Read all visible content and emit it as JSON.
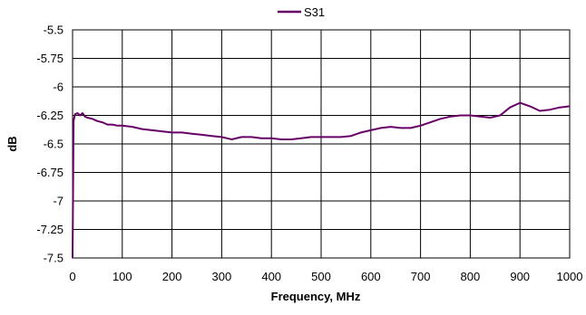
{
  "chart_data": {
    "type": "line",
    "title": "",
    "xlabel": "Frequency, MHz",
    "ylabel": "dB",
    "xlim": [
      0,
      1000
    ],
    "ylim": [
      -7.5,
      -5.5
    ],
    "x_ticks": [
      0,
      100,
      200,
      300,
      400,
      500,
      600,
      700,
      800,
      900,
      1000
    ],
    "y_ticks": [
      -5.5,
      -5.75,
      -6,
      -6.25,
      -6.5,
      -6.75,
      -7,
      -7.25,
      -7.5
    ],
    "x_tick_labels": [
      "0",
      "100",
      "200",
      "300",
      "400",
      "500",
      "600",
      "700",
      "800",
      "900",
      "1000"
    ],
    "y_tick_labels": [
      "-5.5",
      "-5.75",
      "-6",
      "-6.25",
      "-6.5",
      "-6.75",
      "-7",
      "-7.25",
      "-7.5"
    ],
    "grid": true,
    "legend_position": "top-center",
    "series": [
      {
        "name": "S31",
        "color": "#660066",
        "x": [
          0,
          2,
          5,
          10,
          15,
          20,
          25,
          30,
          40,
          50,
          60,
          70,
          80,
          90,
          100,
          120,
          140,
          160,
          180,
          200,
          220,
          240,
          260,
          280,
          300,
          320,
          340,
          360,
          380,
          400,
          420,
          440,
          460,
          480,
          500,
          520,
          540,
          560,
          580,
          600,
          620,
          640,
          660,
          680,
          700,
          720,
          740,
          760,
          780,
          800,
          820,
          840,
          860,
          880,
          900,
          920,
          940,
          960,
          980,
          1000
        ],
        "y": [
          -7.5,
          -6.3,
          -6.24,
          -6.23,
          -6.25,
          -6.23,
          -6.26,
          -6.27,
          -6.28,
          -6.3,
          -6.31,
          -6.33,
          -6.33,
          -6.34,
          -6.34,
          -6.35,
          -6.37,
          -6.38,
          -6.39,
          -6.4,
          -6.4,
          -6.41,
          -6.42,
          -6.43,
          -6.44,
          -6.46,
          -6.44,
          -6.44,
          -6.45,
          -6.45,
          -6.46,
          -6.46,
          -6.45,
          -6.44,
          -6.44,
          -6.44,
          -6.44,
          -6.43,
          -6.4,
          -6.38,
          -6.36,
          -6.35,
          -6.36,
          -6.36,
          -6.34,
          -6.31,
          -6.28,
          -6.26,
          -6.25,
          -6.25,
          -6.26,
          -6.27,
          -6.25,
          -6.18,
          -6.14,
          -6.17,
          -6.21,
          -6.2,
          -6.18,
          -6.17
        ]
      }
    ]
  }
}
